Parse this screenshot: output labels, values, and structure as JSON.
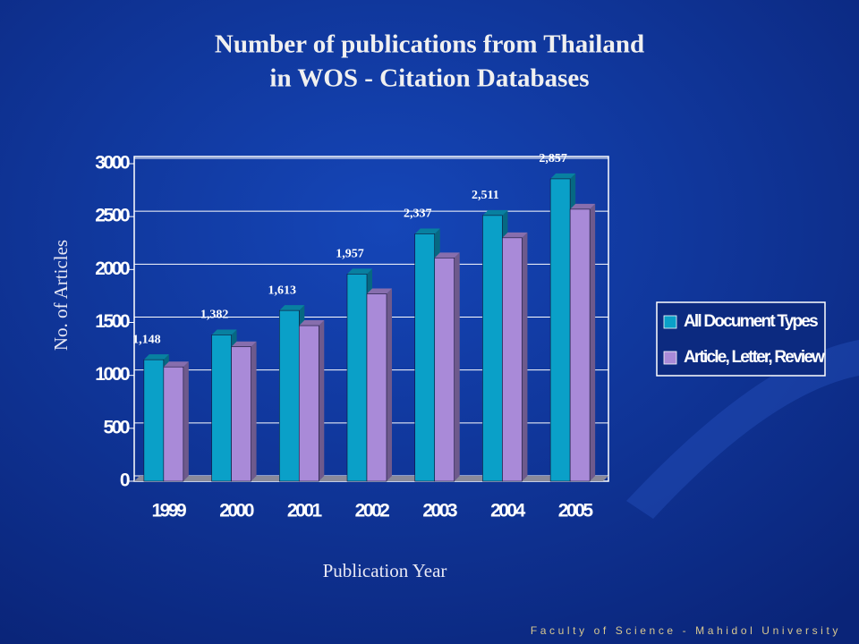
{
  "chart_data": {
    "type": "bar3d",
    "title": [
      "Number of publications from Thailand",
      "in WOS - Citation Databases"
    ],
    "x_label": "Publication Year",
    "y_label": "No. of Articles",
    "footer": "Faculty of Science - Mahidol University",
    "categories": [
      "1999",
      "2000",
      "2001",
      "2002",
      "2003",
      "2004",
      "2005"
    ],
    "series": [
      {
        "name": "All Document Types",
        "color": "#0aa0c8",
        "values": [
          1148,
          1382,
          1613,
          1957,
          2337,
          2511,
          2857
        ],
        "value_labels": [
          "1,148",
          "1,382",
          "1,613",
          "1,957",
          "2,337",
          "2,511",
          "2,857"
        ]
      },
      {
        "name": "Article, Letter, Review",
        "color": "#a98ad8",
        "values": [
          1080,
          1270,
          1470,
          1770,
          2110,
          2300,
          2570
        ]
      }
    ],
    "ylim": [
      0,
      3000
    ],
    "yticks": [
      0,
      500,
      1000,
      1500,
      2000,
      2500,
      3000
    ],
    "grid": true,
    "legend": "right"
  }
}
